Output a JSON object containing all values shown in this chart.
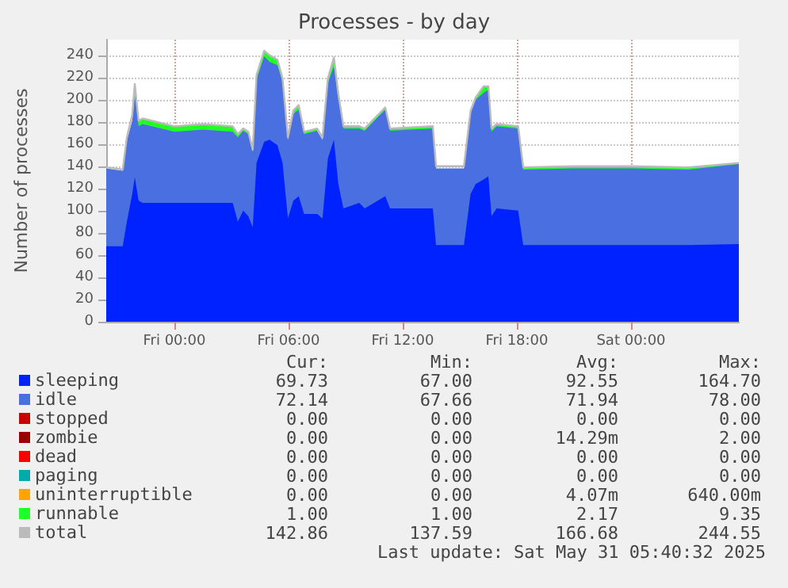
{
  "chart_data": {
    "type": "area",
    "stacked": true,
    "title": "Processes - by day",
    "ylabel": "Number of processes",
    "x": [
      "2025-05-29T20:25",
      "2025-05-29T21:17",
      "2025-05-29T21:30",
      "2025-05-29T21:47",
      "2025-05-29T21:55",
      "2025-05-29T22:07",
      "2025-05-29T22:20",
      "2025-05-30T00:00",
      "2025-05-30T01:30",
      "2025-05-30T03:04",
      "2025-05-30T03:20",
      "2025-05-30T03:37",
      "2025-05-30T03:53",
      "2025-05-30T04:07",
      "2025-05-30T04:19",
      "2025-05-30T04:43",
      "2025-05-30T05:00",
      "2025-05-30T05:25",
      "2025-05-30T05:41",
      "2025-05-30T05:58",
      "2025-05-30T06:15",
      "2025-05-30T06:32",
      "2025-05-30T06:49",
      "2025-05-30T07:30",
      "2025-05-30T07:47",
      "2025-05-30T08:04",
      "2025-05-30T08:23",
      "2025-05-30T08:37",
      "2025-05-30T08:53",
      "2025-05-30T09:43",
      "2025-05-30T10:00",
      "2025-05-30T11:05",
      "2025-05-30T11:20",
      "2025-05-30T13:35",
      "2025-05-30T13:45",
      "2025-05-30T15:13",
      "2025-05-30T15:34",
      "2025-05-30T15:50",
      "2025-05-30T16:15",
      "2025-05-30T16:30",
      "2025-05-30T16:40",
      "2025-05-30T16:56",
      "2025-05-30T18:04",
      "2025-05-30T18:20",
      "2025-05-30T21:00",
      "2025-05-31T00:00",
      "2025-05-31T03:00",
      "2025-05-31T05:40"
    ],
    "xlim": [
      "2025-05-29T20:25",
      "2025-05-31T05:40"
    ],
    "xticks": [
      {
        "value": "2025-05-30T00:00",
        "label": "Fri 00:00"
      },
      {
        "value": "2025-05-30T06:00",
        "label": "Fri 06:00"
      },
      {
        "value": "2025-05-30T12:00",
        "label": "Fri 12:00"
      },
      {
        "value": "2025-05-30T18:00",
        "label": "Fri 18:00"
      },
      {
        "value": "2025-05-31T00:00",
        "label": "Sat 00:00"
      }
    ],
    "ylim": [
      0,
      254
    ],
    "yticks": [
      0,
      20,
      40,
      60,
      80,
      100,
      120,
      140,
      160,
      180,
      200,
      220,
      240
    ],
    "grid": true,
    "legend": "bottom",
    "series": [
      {
        "name": "sleeping",
        "color": "#0022ff",
        "values": [
          68,
          68,
          90,
          115,
          130,
          109,
          107,
          107,
          107,
          107,
          90,
          100,
          95,
          85,
          143,
          162,
          164,
          159,
          143,
          93,
          109,
          113,
          97,
          97,
          93,
          147,
          164,
          124,
          102,
          107,
          102,
          113,
          102,
          102,
          69,
          69,
          115,
          124,
          128,
          131,
          95,
          102,
          100,
          69,
          69,
          69,
          69,
          70
        ]
      },
      {
        "name": "idle",
        "color": "#4a6fe0",
        "values": [
          70,
          68,
          73,
          66,
          75,
          67,
          71,
          64,
          66,
          64,
          76,
          72,
          74,
          68,
          75,
          77,
          70,
          72,
          73,
          71,
          78,
          78,
          72,
          75,
          71,
          68,
          66,
          76,
          72,
          67,
          70,
          78,
          70,
          72,
          69,
          69,
          73,
          76,
          78,
          78,
          76,
          74,
          74,
          68,
          69,
          69,
          68,
          72
        ]
      },
      {
        "name": "stopped",
        "color": "#cc0000",
        "values": [
          null,
          null,
          null,
          null,
          null,
          null,
          null,
          null,
          null,
          null,
          null,
          null,
          null,
          null,
          null,
          null,
          null,
          null,
          null,
          null,
          null,
          null,
          null,
          null,
          null,
          null,
          null,
          null,
          null,
          null,
          null,
          null,
          null,
          null,
          null,
          null,
          null,
          null,
          null,
          null,
          null,
          null,
          null,
          null,
          null,
          null,
          null,
          null
        ]
      },
      {
        "name": "zombie",
        "color": "#990000",
        "values": [
          null,
          null,
          null,
          null,
          null,
          null,
          null,
          null,
          null,
          null,
          null,
          null,
          null,
          null,
          null,
          null,
          null,
          null,
          null,
          null,
          null,
          null,
          null,
          null,
          null,
          null,
          null,
          null,
          null,
          null,
          null,
          null,
          null,
          null,
          null,
          null,
          null,
          null,
          null,
          null,
          null,
          null,
          null,
          null,
          null,
          null,
          null,
          null
        ]
      },
      {
        "name": "dead",
        "color": "#ff0000",
        "values": [
          null,
          null,
          null,
          null,
          null,
          null,
          null,
          null,
          null,
          null,
          null,
          null,
          null,
          null,
          null,
          null,
          null,
          null,
          null,
          null,
          null,
          null,
          null,
          null,
          null,
          null,
          null,
          null,
          null,
          null,
          null,
          null,
          null,
          null,
          null,
          null,
          null,
          null,
          null,
          null,
          null,
          null,
          null,
          null,
          null,
          null,
          null,
          null
        ]
      },
      {
        "name": "paging",
        "color": "#00aaaa",
        "values": [
          null,
          null,
          null,
          null,
          null,
          null,
          null,
          null,
          null,
          null,
          null,
          null,
          null,
          null,
          null,
          null,
          null,
          null,
          null,
          null,
          null,
          null,
          null,
          null,
          null,
          null,
          null,
          null,
          null,
          null,
          null,
          null,
          null,
          null,
          null,
          null,
          null,
          null,
          null,
          null,
          null,
          null,
          null,
          null,
          null,
          null,
          null,
          null
        ]
      },
      {
        "name": "uninterruptible",
        "color": "#ffa500",
        "values": [
          null,
          null,
          null,
          null,
          null,
          null,
          null,
          null,
          null,
          null,
          null,
          null,
          null,
          null,
          null,
          null,
          null,
          null,
          null,
          null,
          null,
          null,
          null,
          null,
          null,
          null,
          null,
          null,
          null,
          null,
          null,
          null,
          null,
          null,
          null,
          null,
          null,
          null,
          null,
          null,
          null,
          null,
          null,
          null,
          null,
          null,
          null,
          null
        ]
      },
      {
        "name": "runnable",
        "color": "#22ff22",
        "values": [
          null,
          null,
          null,
          null,
          9,
          5,
          5,
          5,
          5,
          5,
          3,
          2,
          2,
          null,
          4,
          5,
          6,
          5,
          3,
          null,
          3,
          4,
          2,
          2,
          null,
          4,
          8,
          5,
          2,
          2,
          2,
          2,
          2,
          2,
          2,
          null,
          null,
          2,
          6,
          3,
          3,
          2,
          2,
          2,
          2,
          2,
          2,
          1
        ]
      },
      {
        "name": "total",
        "type": "line",
        "color": "#bbbbbb",
        "values": [
          139,
          137,
          166,
          186,
          214,
          181,
          183,
          176,
          178,
          176,
          169,
          174,
          171,
          155,
          222,
          244,
          240,
          236,
          219,
          166,
          190,
          195,
          171,
          174,
          166,
          219,
          238,
          205,
          176,
          176,
          174,
          193,
          174,
          176,
          140,
          140,
          190,
          202,
          212,
          212,
          174,
          178,
          176,
          139,
          140,
          140,
          139,
          143
        ]
      }
    ],
    "annotations": [
      "Cur:",
      "Min:",
      "Avg:",
      "Max:",
      "69.73",
      "67.00",
      "92.55",
      "164.70",
      "72.14",
      "67.66",
      "71.94",
      "78.00",
      "0.00",
      "0.00",
      "0.00",
      "0.00",
      "0.00",
      "0.00",
      "14.29m",
      "2.00",
      "0.00",
      "0.00",
      "0.00",
      "0.00",
      "0.00",
      "0.00",
      "0.00",
      "0.00",
      "0.00",
      "0.00",
      "4.07m",
      "640.00m",
      "1.00",
      "1.00",
      "2.17",
      "9.35",
      "142.86",
      "137.59",
      "166.68",
      "244.55",
      "Last update: Sat May 31 05:40:32 2025"
    ]
  }
}
